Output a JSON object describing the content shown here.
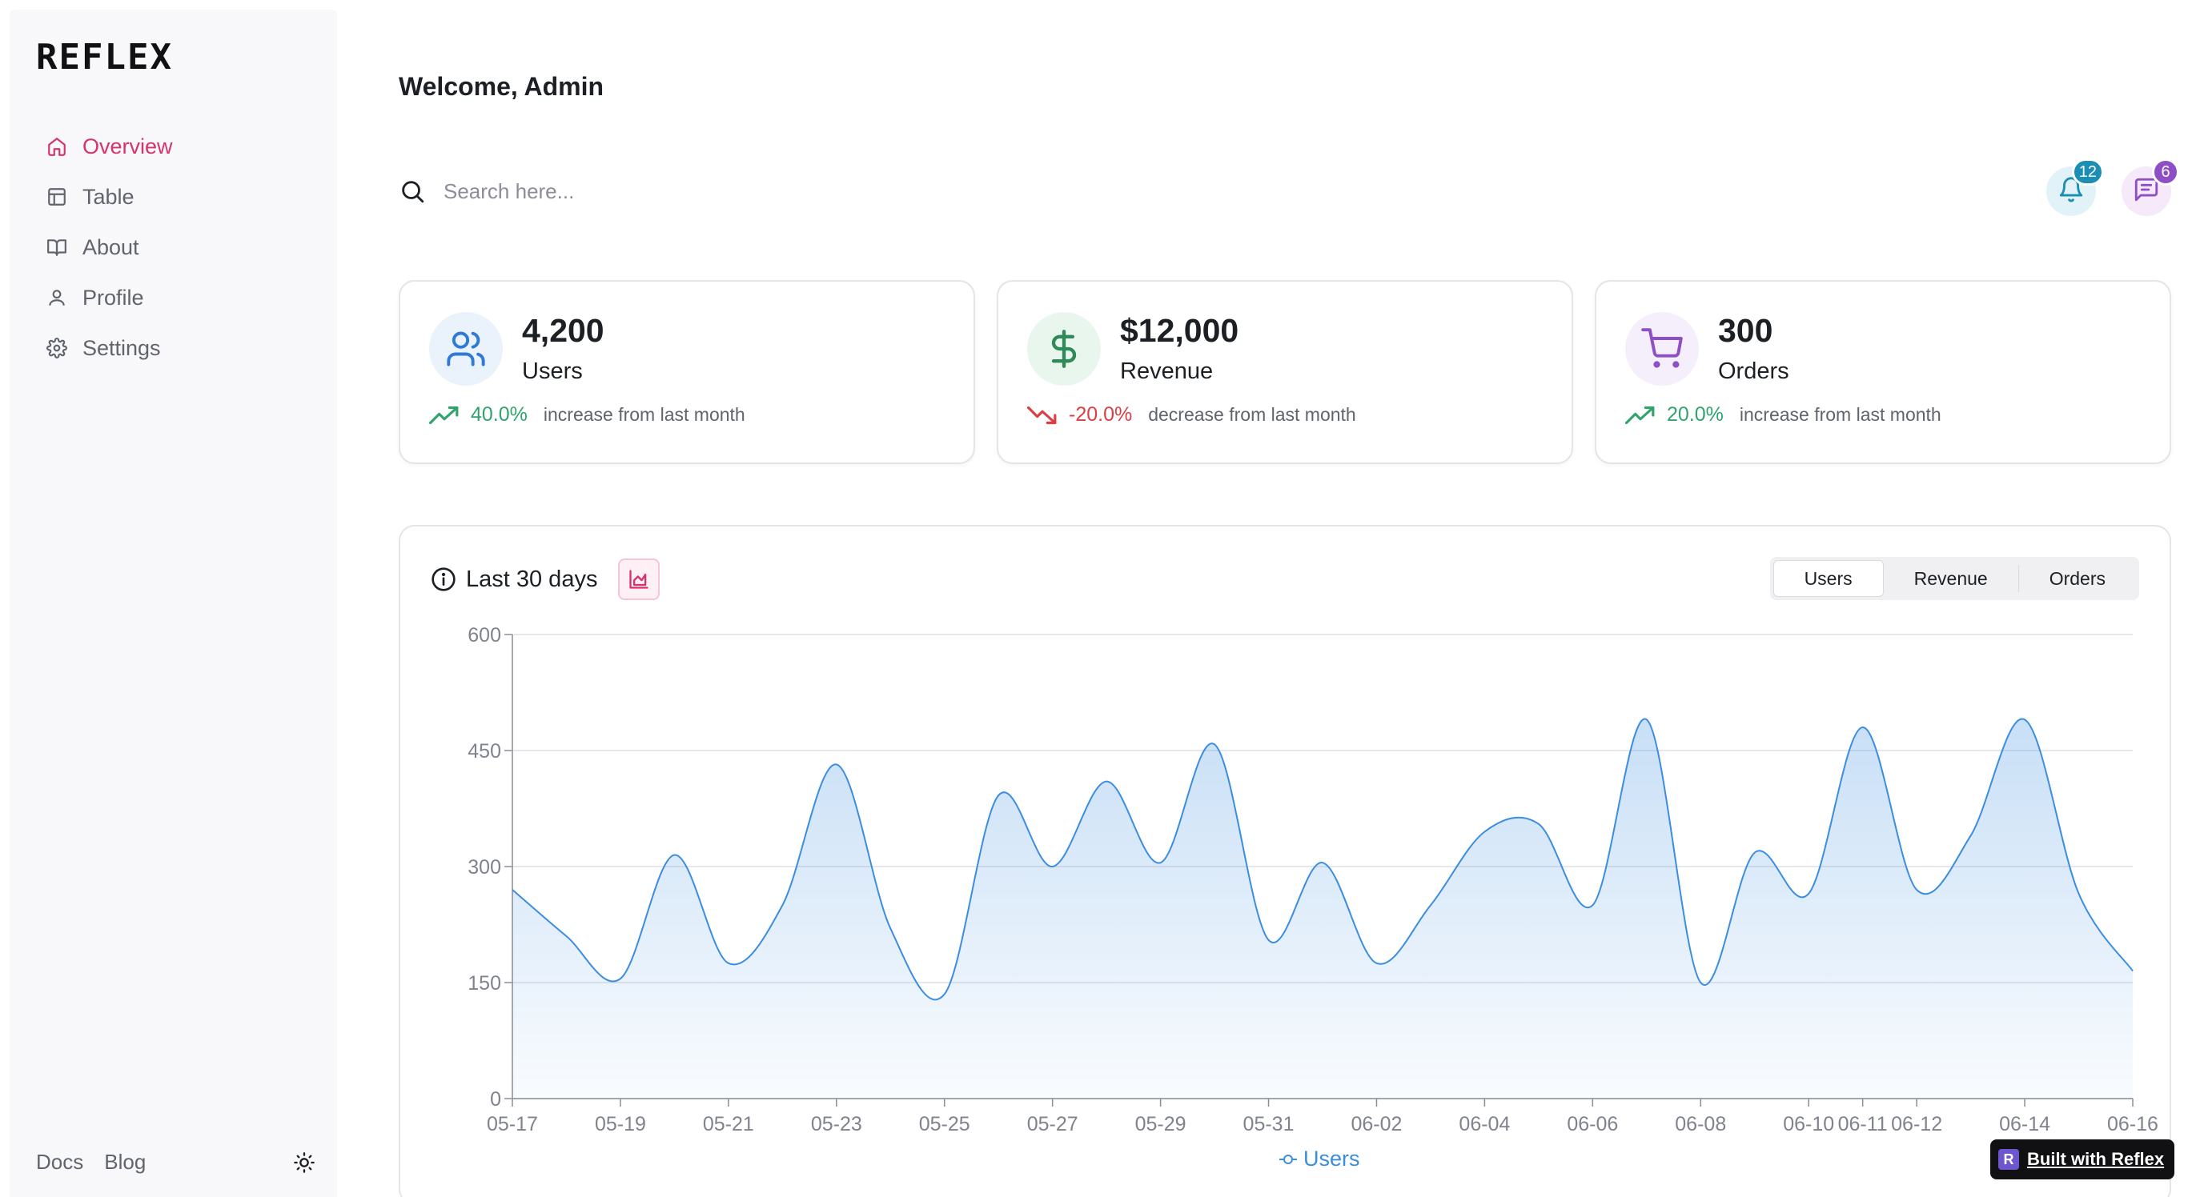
{
  "app": {
    "logo": "REFLEX"
  },
  "sidebar": {
    "items": [
      {
        "label": "Overview",
        "icon": "home-icon",
        "active": true
      },
      {
        "label": "Table",
        "icon": "table-icon",
        "active": false
      },
      {
        "label": "About",
        "icon": "book-icon",
        "active": false
      },
      {
        "label": "Profile",
        "icon": "user-icon",
        "active": false
      },
      {
        "label": "Settings",
        "icon": "gear-icon",
        "active": false
      }
    ],
    "footer": {
      "docs": "Docs",
      "blog": "Blog",
      "theme_icon": "sun-icon"
    }
  },
  "header": {
    "welcome": "Welcome, Admin",
    "search_placeholder": "Search here...",
    "notifications": {
      "count": "12",
      "icon": "bell-icon"
    },
    "messages": {
      "count": "6",
      "icon": "message-icon"
    }
  },
  "stats": [
    {
      "value": "4,200",
      "label": "Users",
      "change": "40.0%",
      "direction": "up",
      "desc": "increase from last month",
      "icon": "users-icon",
      "color": "#2e7ad6",
      "bg": "#eaf3fc"
    },
    {
      "value": "$12,000",
      "label": "Revenue",
      "change": "-20.0%",
      "direction": "down",
      "desc": "decrease from last month",
      "icon": "dollar-icon",
      "color": "#2f8a57",
      "bg": "#e9f6ee"
    },
    {
      "value": "300",
      "label": "Orders",
      "change": "20.0%",
      "direction": "up",
      "desc": "increase from last month",
      "icon": "cart-icon",
      "color": "#8e4ec6",
      "bg": "#f5eefb"
    }
  ],
  "chart_panel": {
    "title": "Last 30 days",
    "tabs": [
      "Users",
      "Revenue",
      "Orders"
    ],
    "active_tab": "Users"
  },
  "chart_data": {
    "type": "area",
    "x": [
      "05-17",
      "05-18",
      "05-19",
      "05-20",
      "05-21",
      "05-22",
      "05-23",
      "05-24",
      "05-25",
      "05-26",
      "05-27",
      "05-28",
      "05-29",
      "05-30",
      "05-31",
      "06-01",
      "06-02",
      "06-03",
      "06-04",
      "06-05",
      "06-06",
      "06-07",
      "06-08",
      "06-09",
      "06-10",
      "06-11",
      "06-12",
      "06-13",
      "06-14",
      "06-15",
      "06-16"
    ],
    "xticks": [
      "05-17",
      "05-19",
      "05-21",
      "05-23",
      "05-25",
      "05-27",
      "05-29",
      "05-31",
      "06-02",
      "06-04",
      "06-06",
      "06-08",
      "06-10",
      "06-11",
      "06-12",
      "06-14",
      "06-16"
    ],
    "series": [
      {
        "name": "Users",
        "values": [
          270,
          210,
          155,
          315,
          175,
          250,
          432,
          220,
          135,
          392,
          300,
          410,
          305,
          458,
          205,
          305,
          175,
          250,
          345,
          355,
          250,
          490,
          150,
          318,
          265,
          480,
          270,
          340,
          490,
          265,
          165
        ],
        "color": "#3b8de0"
      }
    ],
    "yticks": [
      0,
      150,
      300,
      450,
      600
    ],
    "ylim": [
      0,
      600
    ],
    "legend": "bottom",
    "grid": true
  },
  "badge": {
    "label": "Built with Reflex",
    "logo": "R"
  }
}
